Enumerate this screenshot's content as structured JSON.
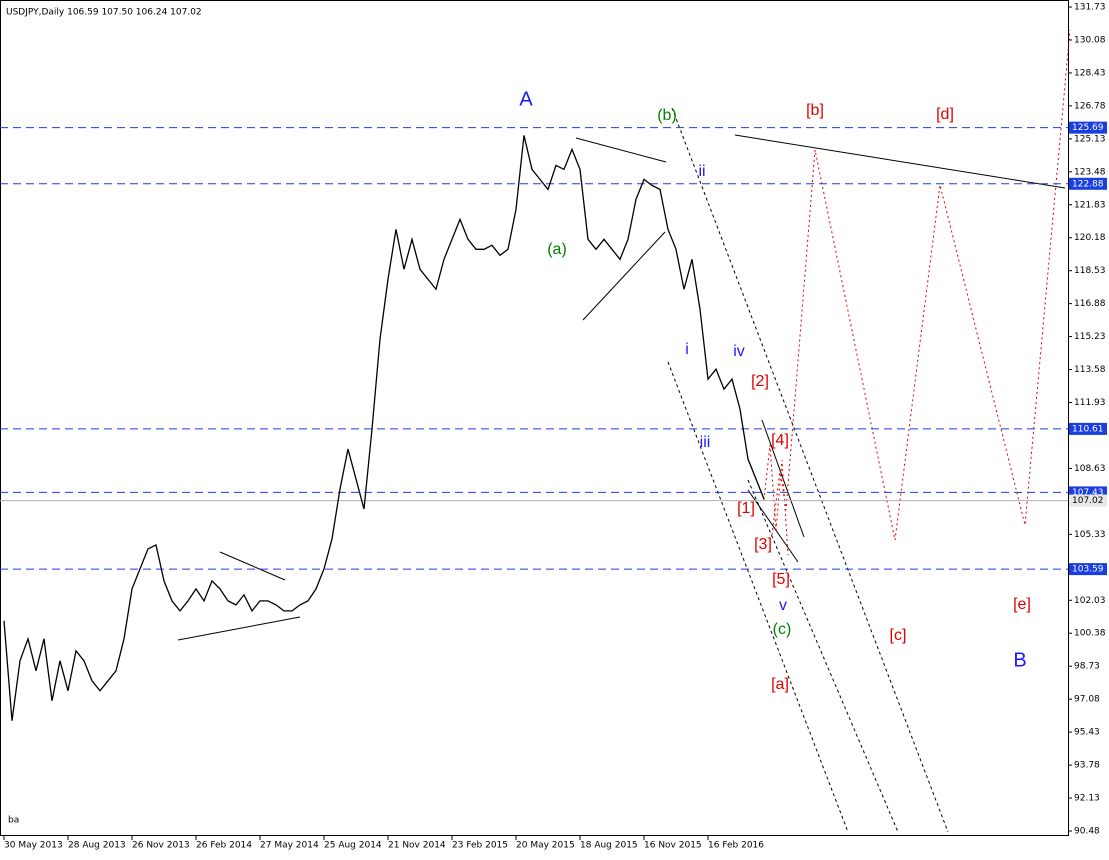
{
  "chart_data": {
    "type": "line",
    "header": "USDJPY,Daily  106.59 107.50 106.24 107.02",
    "footer_label": "ba",
    "color": "#000000",
    "categories": [
      "30 May 2013",
      null,
      null,
      null,
      null,
      null,
      null,
      null,
      "28 Aug 2013",
      null,
      null,
      null,
      null,
      null,
      null,
      null,
      "26 Nov 2013",
      null,
      null,
      null,
      null,
      null,
      null,
      null,
      "26 Feb 2014",
      null,
      null,
      null,
      null,
      null,
      null,
      null,
      "27 May 2014",
      null,
      null,
      null,
      null,
      null,
      null,
      null,
      "25 Aug 2014",
      null,
      null,
      null,
      null,
      null,
      null,
      null,
      "21 Nov 2014",
      null,
      null,
      null,
      null,
      null,
      null,
      null,
      "23 Feb 2015",
      null,
      null,
      null,
      null,
      null,
      null,
      null,
      "20 May 2015",
      null,
      null,
      null,
      null,
      null,
      null,
      null,
      "18 Aug 2015",
      null,
      null,
      null,
      null,
      null,
      null,
      null,
      "16 Nov 2015",
      null,
      null,
      null,
      null,
      null,
      null,
      null,
      "16 Feb 2016",
      null,
      null,
      null,
      null,
      null,
      null,
      null
    ],
    "values": [
      101.0,
      96.0,
      99.0,
      100.1,
      98.5,
      100.1,
      97.0,
      99.0,
      97.5,
      99.5,
      99.0,
      98.0,
      97.5,
      98.0,
      98.5,
      100.1,
      102.6,
      103.6,
      104.6,
      104.8,
      103.0,
      102.0,
      101.5,
      102.0,
      102.6,
      102.0,
      103.0,
      102.6,
      102.0,
      101.8,
      102.3,
      101.5,
      102.0,
      102.0,
      101.8,
      101.5,
      101.5,
      101.8,
      102.0,
      102.6,
      103.6,
      105.1,
      107.6,
      109.6,
      108.1,
      106.6,
      110.6,
      115.1,
      118.1,
      120.6,
      118.6,
      120.1,
      118.6,
      118.1,
      117.6,
      119.1,
      120.1,
      121.1,
      120.1,
      119.6,
      119.6,
      119.8,
      119.3,
      119.6,
      121.6,
      125.3,
      123.6,
      123.1,
      122.6,
      123.8,
      123.6,
      124.6,
      123.6,
      120.1,
      119.6,
      120.1,
      119.6,
      119.1,
      120.1,
      122.1,
      123.1,
      122.8,
      122.6,
      120.6,
      119.6,
      117.6,
      119.1,
      116.6,
      113.1,
      113.6,
      112.6,
      113.1,
      111.6,
      109.1,
      108.1,
      107.1
    ],
    "ylim": [
      90.48,
      131.73
    ],
    "yticks": [
      131.73,
      130.08,
      128.43,
      126.78,
      125.13,
      123.48,
      121.83,
      120.18,
      118.53,
      116.88,
      115.23,
      113.58,
      111.93,
      108.63,
      105.33,
      102.03,
      100.38,
      98.73,
      97.08,
      95.43,
      93.78,
      92.13,
      90.48
    ],
    "levels": [
      125.69,
      122.88,
      110.61,
      107.43,
      103.59
    ],
    "level_color": "#1a3ee0",
    "current_price": 107.02,
    "annotations": [
      {
        "text": "A",
        "color": "#1a1aff"
      },
      {
        "text": "(b)",
        "color": "#008000"
      },
      {
        "text": "[b]",
        "color": "#e00000"
      },
      {
        "text": "[d]",
        "color": "#e00000"
      },
      {
        "text": "ii",
        "color": "#1a1aff"
      },
      {
        "text": "(a)",
        "color": "#008000"
      },
      {
        "text": "i",
        "color": "#1a1aff"
      },
      {
        "text": "iv",
        "color": "#1a1aff"
      },
      {
        "text": "[2]",
        "color": "#e00000"
      },
      {
        "text": "[4]",
        "color": "#e00000"
      },
      {
        "text": "iii",
        "color": "#1a1aff"
      },
      {
        "text": "[1]",
        "color": "#e00000"
      },
      {
        "text": "[3]",
        "color": "#e00000"
      },
      {
        "text": "[5]",
        "color": "#e00000"
      },
      {
        "text": "v",
        "color": "#1a1aff"
      },
      {
        "text": "(c)",
        "color": "#008000"
      },
      {
        "text": "[a]",
        "color": "#e00000"
      },
      {
        "text": "[c]",
        "color": "#e00000"
      },
      {
        "text": "[e]",
        "color": "#e00000"
      },
      {
        "text": "B",
        "color": "#1a1aff"
      }
    ]
  }
}
